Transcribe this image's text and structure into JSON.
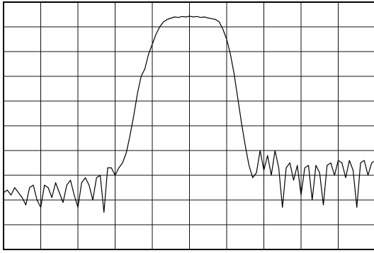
{
  "chart_data": {
    "type": "line",
    "x": [
      0,
      0.1,
      0.2,
      0.3,
      0.4,
      0.5,
      0.6,
      0.7,
      0.8,
      0.9,
      1,
      1.1,
      1.2,
      1.3,
      1.4,
      1.5,
      1.6,
      1.7,
      1.8,
      1.9,
      2,
      2.1,
      2.2,
      2.3,
      2.4,
      2.5,
      2.6,
      2.7,
      2.8,
      2.9,
      3,
      3.1,
      3.2,
      3.3,
      3.4,
      3.5,
      3.6,
      3.7,
      3.8,
      3.9,
      4,
      4.1,
      4.2,
      4.3,
      4.4,
      4.5,
      4.6,
      4.7,
      4.8,
      4.9,
      5,
      5.1,
      5.2,
      5.3,
      5.4,
      5.5,
      5.6,
      5.7,
      5.8,
      5.9,
      6,
      6.1,
      6.2,
      6.3,
      6.4,
      6.5,
      6.6,
      6.7,
      6.8,
      6.9,
      7,
      7.1,
      7.2,
      7.3,
      7.4,
      7.5,
      7.6,
      7.7,
      7.8,
      7.9,
      8,
      8.1,
      8.2,
      8.3,
      8.4,
      8.5,
      8.6,
      8.7,
      8.8,
      8.9,
      9,
      9.1,
      9.2,
      9.3,
      9.4,
      9.5,
      9.6,
      9.7,
      9.8,
      9.9,
      10
    ],
    "series": [
      {
        "color": "#000000",
        "values": [
          2.3,
          2.4,
          2.2,
          2.5,
          2.3,
          2.1,
          1.8,
          2.5,
          2.6,
          2.0,
          1.7,
          2.6,
          2.5,
          2.1,
          2.7,
          2.3,
          1.9,
          2.6,
          2.8,
          2.2,
          1.7,
          2.7,
          2.9,
          2.6,
          2.0,
          2.9,
          3.0,
          1.5,
          3.3,
          3.3,
          3.0,
          3.3,
          3.5,
          3.9,
          4.6,
          5.4,
          6.3,
          7.0,
          7.3,
          7.9,
          8.3,
          8.7,
          9.0,
          9.2,
          9.3,
          9.35,
          9.4,
          9.38,
          9.42,
          9.4,
          9.43,
          9.4,
          9.42,
          9.38,
          9.4,
          9.36,
          9.33,
          9.3,
          9.2,
          8.9,
          8.5,
          7.9,
          7.1,
          6.1,
          5.1,
          4.2,
          3.4,
          2.9,
          3.1,
          4.0,
          3.2,
          3.8,
          3.0,
          4.0,
          3.3,
          1.7,
          3.3,
          3.5,
          2.8,
          3.4,
          2.2,
          3.3,
          3.4,
          2.0,
          3.4,
          3.1,
          1.8,
          3.4,
          3.5,
          3.0,
          3.6,
          3.5,
          2.9,
          3.6,
          3.2,
          1.7,
          3.5,
          3.6,
          3.0,
          3.5,
          3.6
        ]
      }
    ],
    "xlim": [
      0,
      10
    ],
    "ylim": [
      0,
      10
    ],
    "xticks": [
      0,
      1,
      2,
      3,
      4,
      5,
      6,
      7,
      8,
      9,
      10
    ],
    "yticks": [
      0,
      1,
      2,
      3,
      4,
      5,
      6,
      7,
      8,
      9,
      10
    ],
    "grid": true
  }
}
